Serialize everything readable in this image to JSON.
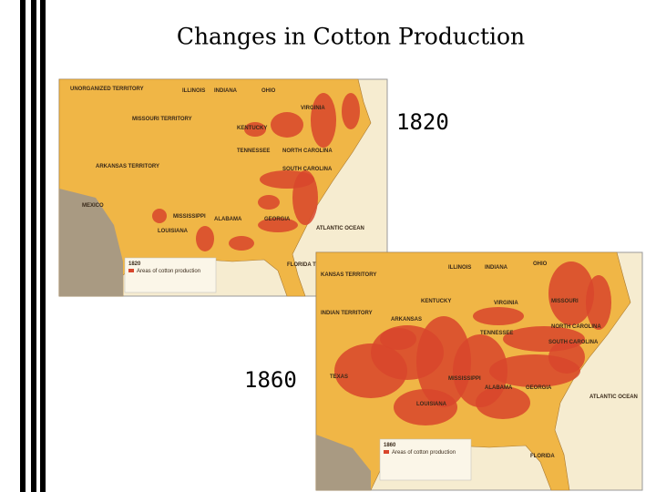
{
  "title": "Changes in Cotton Production",
  "maps": [
    {
      "year_label": "1820",
      "legend_title": "1820",
      "legend_item": "Areas of cotton production",
      "labels": [
        "UNORGANIZED TERRITORY",
        "ILLINOIS",
        "INDIANA",
        "OHIO",
        "VIRGINIA",
        "MISSOURI TERRITORY",
        "KENTUCKY",
        "TENNESSEE",
        "NORTH CAROLINA",
        "SOUTH CAROLINA",
        "ARKANSAS TERRITORY",
        "GEORGIA",
        "ALABAMA",
        "MISSISSIPPI",
        "LOUISIANA",
        "MEXICO",
        "FLORIDA TERRITORY",
        "ATLANTIC OCEAN"
      ]
    },
    {
      "year_label": "1860",
      "legend_title": "1860",
      "legend_item": "Areas of cotton production",
      "labels": [
        "KANSAS TERRITORY",
        "ILLINOIS",
        "INDIANA",
        "OHIO",
        "MISSOURI",
        "KENTUCKY",
        "VIRGINIA",
        "INDIAN TERRITORY",
        "ARKANSAS",
        "TENNESSEE",
        "NORTH CAROLINA",
        "SOUTH CAROLINA",
        "TEXAS",
        "MISSISSIPPI",
        "ALABAMA",
        "GEORGIA",
        "LOUISIANA",
        "FLORIDA",
        "ATLANTIC OCEAN"
      ]
    }
  ]
}
